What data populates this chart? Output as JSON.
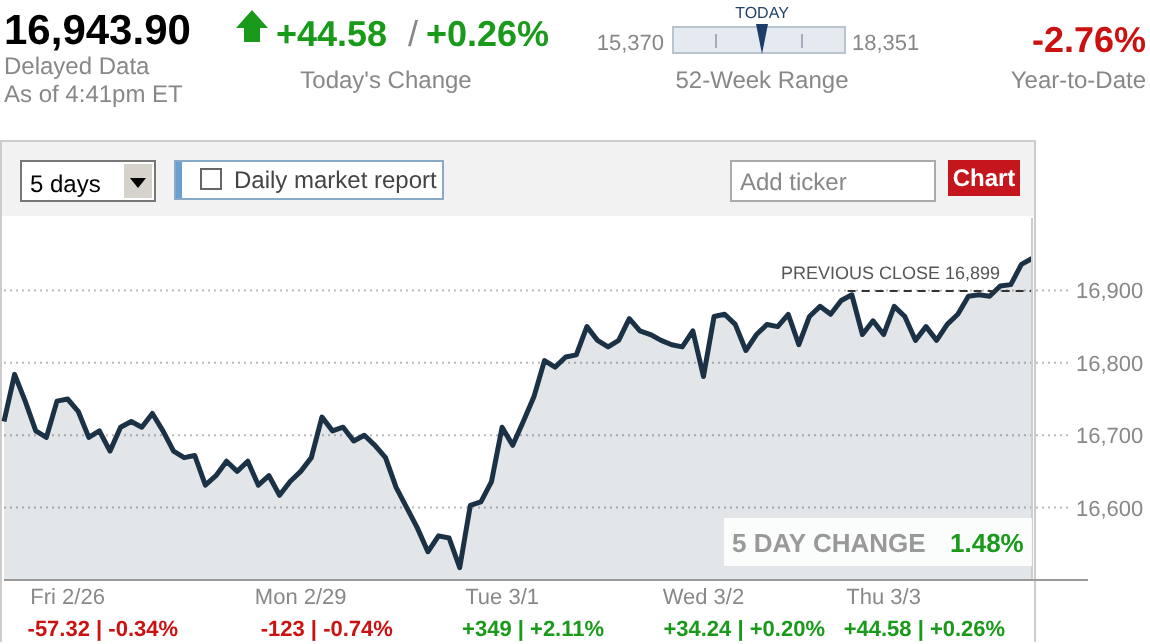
{
  "chart_data": {
    "type": "area",
    "color": "#1b3246",
    "categories": [
      null,
      null,
      null,
      null,
      null,
      null,
      "Fri 2/26",
      null,
      null,
      null,
      null,
      null,
      null,
      null,
      null,
      null,
      null,
      null,
      null,
      null,
      null,
      null,
      null,
      null,
      null,
      null,
      null,
      null,
      "Mon 2/29",
      null,
      null,
      null,
      null,
      null,
      null,
      null,
      null,
      null,
      null,
      null,
      null,
      null,
      null,
      null,
      null,
      null,
      null,
      "Tue 3/1",
      null,
      null,
      null,
      null,
      null,
      null,
      null,
      null,
      null,
      null,
      null,
      null,
      null,
      null,
      null,
      null,
      null,
      null,
      "Wed 3/2",
      null,
      null,
      null,
      null,
      null,
      null,
      null,
      null,
      null,
      null,
      null,
      null,
      null,
      null,
      null,
      null,
      "Thu 3/3",
      null,
      null,
      null,
      null,
      null,
      null,
      null,
      null,
      null,
      null,
      null,
      null,
      null,
      null
    ],
    "values": [
      16719,
      16784,
      16747,
      16706,
      16697,
      16747,
      16750,
      16733,
      16697,
      16706,
      16678,
      16711,
      16719,
      16711,
      16730,
      16706,
      16678,
      16669,
      16672,
      16631,
      16644,
      16664,
      16650,
      16664,
      16631,
      16644,
      16617,
      16636,
      16650,
      16669,
      16725,
      16706,
      16711,
      16692,
      16700,
      16686,
      16669,
      16628,
      16600,
      16572,
      16539,
      16561,
      16558,
      16517,
      16603,
      16608,
      16636,
      16711,
      16686,
      16719,
      16753,
      16803,
      16794,
      16808,
      16811,
      16850,
      16831,
      16822,
      16831,
      16861,
      16844,
      16839,
      16831,
      16825,
      16822,
      16844,
      16781,
      16864,
      16867,
      16853,
      16817,
      16839,
      16853,
      16850,
      16867,
      16825,
      16864,
      16878,
      16867,
      16886,
      16894,
      16839,
      16858,
      16839,
      16878,
      16864,
      16831,
      16850,
      16831,
      16853,
      16867,
      16892,
      16894,
      16892,
      16906,
      16908,
      16936,
      16944
    ],
    "ylim": [
      16500,
      17000
    ],
    "yticks": [
      {
        "value": 16600,
        "label": "16,600"
      },
      {
        "value": 16700,
        "label": "16,700"
      },
      {
        "value": 16800,
        "label": "16,800"
      },
      {
        "value": 16900,
        "label": "16,900"
      }
    ],
    "grid": "y",
    "line_style": "solid",
    "ref_lines": [
      {
        "axis": "y",
        "value": 16899,
        "label": "PREVIOUS CLOSE 16,899",
        "line_style": "dashed",
        "color": "#333333"
      }
    ],
    "annotations": [
      "16,943.90",
      "Delayed Data",
      "As of 4:41pm ET",
      "+44.58",
      "/",
      "+0.26%",
      "Today's Change",
      "TODAY",
      "15,370",
      "18,351",
      "52-Week Range",
      "-2.76%",
      "Year-to-Date",
      "5 days",
      "Daily market report",
      "Add ticker",
      "Chart",
      "5 DAY CHANGE",
      "1.48%",
      "-57.32 | -0.34%",
      "-123 | -0.74%",
      "+349 | +2.11%",
      "+34.24 | +0.20%",
      "+44.58 | +0.26%"
    ]
  }
}
